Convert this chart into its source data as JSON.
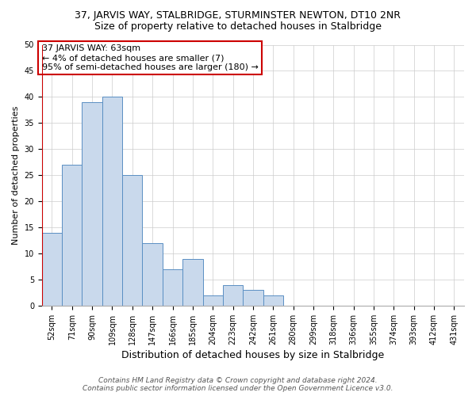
{
  "title": "37, JARVIS WAY, STALBRIDGE, STURMINSTER NEWTON, DT10 2NR",
  "subtitle": "Size of property relative to detached houses in Stalbridge",
  "xlabel": "Distribution of detached houses by size in Stalbridge",
  "ylabel": "Number of detached properties",
  "categories": [
    "52sqm",
    "71sqm",
    "90sqm",
    "109sqm",
    "128sqm",
    "147sqm",
    "166sqm",
    "185sqm",
    "204sqm",
    "223sqm",
    "242sqm",
    "261sqm",
    "280sqm",
    "299sqm",
    "318sqm",
    "336sqm",
    "355sqm",
    "374sqm",
    "393sqm",
    "412sqm",
    "431sqm"
  ],
  "values": [
    14,
    27,
    39,
    40,
    25,
    12,
    7,
    9,
    2,
    4,
    3,
    2,
    0,
    0,
    0,
    0,
    0,
    0,
    0,
    0,
    0
  ],
  "bar_color": "#c9d9ec",
  "bar_edge_color": "#5a8fc3",
  "highlight_line_color": "#cc0000",
  "ylim": [
    0,
    50
  ],
  "yticks": [
    0,
    5,
    10,
    15,
    20,
    25,
    30,
    35,
    40,
    45,
    50
  ],
  "annotation_text": "37 JARVIS WAY: 63sqm\n← 4% of detached houses are smaller (7)\n95% of semi-detached houses are larger (180) →",
  "annotation_box_color": "#ffffff",
  "annotation_box_edge": "#cc0000",
  "footer_line1": "Contains HM Land Registry data © Crown copyright and database right 2024.",
  "footer_line2": "Contains public sector information licensed under the Open Government Licence v3.0.",
  "title_fontsize": 9,
  "subtitle_fontsize": 9,
  "xlabel_fontsize": 9,
  "ylabel_fontsize": 8,
  "tick_fontsize": 7,
  "annotation_fontsize": 8,
  "footer_fontsize": 6.5
}
